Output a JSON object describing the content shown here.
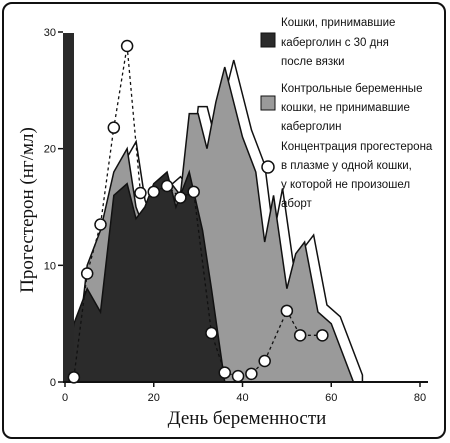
{
  "chart_data": {
    "type": "area",
    "xlabel": "День беременности",
    "ylabel": "Прогестерон (нг/мл)",
    "xlim": [
      0,
      80
    ],
    "ylim": [
      0,
      30
    ],
    "x_ticks": [
      0,
      20,
      40,
      60,
      80
    ],
    "y_ticks": [
      0,
      10,
      20,
      30
    ],
    "legend_position": "top-right",
    "series": [
      {
        "name": "Кошки, принимавшие каберголин с 30 дня после вязки",
        "kind": "area",
        "color": "#2b2b2b",
        "x": [
          0,
          2,
          5,
          8,
          11,
          14,
          16,
          18,
          20,
          23,
          25,
          28,
          31,
          33,
          36
        ],
        "y": [
          0,
          5,
          8,
          6,
          16,
          17,
          14,
          15,
          17,
          18,
          15,
          18,
          13,
          8,
          0
        ]
      },
      {
        "name": "Контрольные беременные кошки, не принимавшие каберголин",
        "kind": "area",
        "color": "#9a9a9a",
        "x": [
          2,
          5,
          8,
          11,
          14,
          16,
          18,
          21,
          24,
          26,
          28,
          30,
          32,
          34,
          36,
          38,
          40,
          43,
          45,
          47,
          50,
          52,
          54,
          57,
          60,
          62,
          65
        ],
        "y": [
          0,
          10,
          13,
          18,
          20,
          15,
          13,
          16,
          17,
          16,
          23,
          23,
          20,
          24,
          27,
          24,
          21,
          18,
          12,
          16,
          8,
          11,
          12,
          6,
          5,
          3,
          0
        ]
      },
      {
        "name": "Концентрация прогестерона в плазме у одной кошки, у которой не произошел аборт",
        "kind": "points",
        "color": "#ffffff",
        "x": [
          2,
          5,
          8,
          11,
          14,
          17,
          20,
          23,
          26,
          29,
          33,
          36,
          39,
          42,
          45,
          50,
          53,
          58
        ],
        "y": [
          0.4,
          9.3,
          13.5,
          21.8,
          28.8,
          16.2,
          16.3,
          16.8,
          15.8,
          16.3,
          4.2,
          0.8,
          0.5,
          0.7,
          1.8,
          6.1,
          4.0,
          4.0
        ]
      }
    ]
  },
  "legend": [
    {
      "label_lines": [
        "Кошки, принимавшие",
        "каберголин с 30 дня",
        "после вязки"
      ],
      "swatch": "dark-square"
    },
    {
      "label_lines": [
        "Контрольные беременные",
        "кошки, не принимавшие",
        "каберголин"
      ],
      "swatch": "gray-square"
    },
    {
      "label_lines": [
        "Концентрация прогестерона",
        "в плазме у одной кошки,",
        "у которой не произошел",
        "аборт"
      ],
      "swatch": "open-circle"
    }
  ]
}
